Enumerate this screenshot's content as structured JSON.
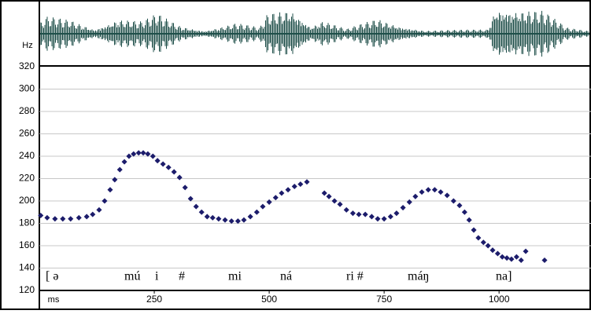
{
  "chart_data": {
    "type": "scatter",
    "x_label": "ms",
    "y_label": "Hz",
    "xlim": [
      0,
      1200
    ],
    "xticks": [
      250,
      500,
      750,
      1000
    ],
    "ylim": [
      120,
      320
    ],
    "yticks": [
      120,
      140,
      160,
      180,
      200,
      220,
      240,
      260,
      280,
      300,
      320
    ],
    "grid": true,
    "color": "#1c1c6b",
    "x": [
      3,
      17,
      34,
      51,
      68,
      86,
      103,
      116,
      130,
      142,
      154,
      164,
      175,
      185,
      195,
      205,
      216,
      226,
      236,
      247,
      257,
      269,
      281,
      293,
      305,
      317,
      329,
      341,
      353,
      365,
      377,
      390,
      404,
      418,
      432,
      445,
      459,
      473,
      486,
      500,
      514,
      527,
      541,
      555,
      568,
      582,
      620,
      630,
      642,
      654,
      668,
      682,
      695,
      709,
      723,
      736,
      750,
      764,
      777,
      791,
      805,
      818,
      832,
      846,
      860,
      873,
      887,
      901,
      914,
      925,
      935,
      945,
      955,
      966,
      976,
      986,
      997,
      1007,
      1017,
      1027,
      1038,
      1048,
      1058,
      1099
    ],
    "values": [
      187,
      185,
      184,
      184,
      184,
      185,
      186,
      188,
      192,
      200,
      210,
      219,
      228,
      235,
      240,
      242,
      243,
      243,
      242,
      240,
      236,
      233,
      230,
      226,
      221,
      212,
      202,
      195,
      190,
      186,
      185,
      184,
      183,
      182,
      182,
      183,
      186,
      190,
      195,
      199,
      203,
      207,
      210,
      213,
      215,
      217,
      207,
      204,
      200,
      197,
      192,
      189,
      188,
      188,
      186,
      184,
      184,
      186,
      189,
      194,
      199,
      204,
      208,
      210,
      210,
      208,
      205,
      200,
      196,
      190,
      183,
      174,
      167,
      163,
      160,
      156,
      153,
      150,
      149,
      148,
      150,
      147,
      155,
      147
    ],
    "annotations": [
      "[ ə",
      "mú",
      "i",
      "#",
      "mi",
      "ná",
      "ri #",
      "máŋ",
      "na]"
    ]
  }
}
